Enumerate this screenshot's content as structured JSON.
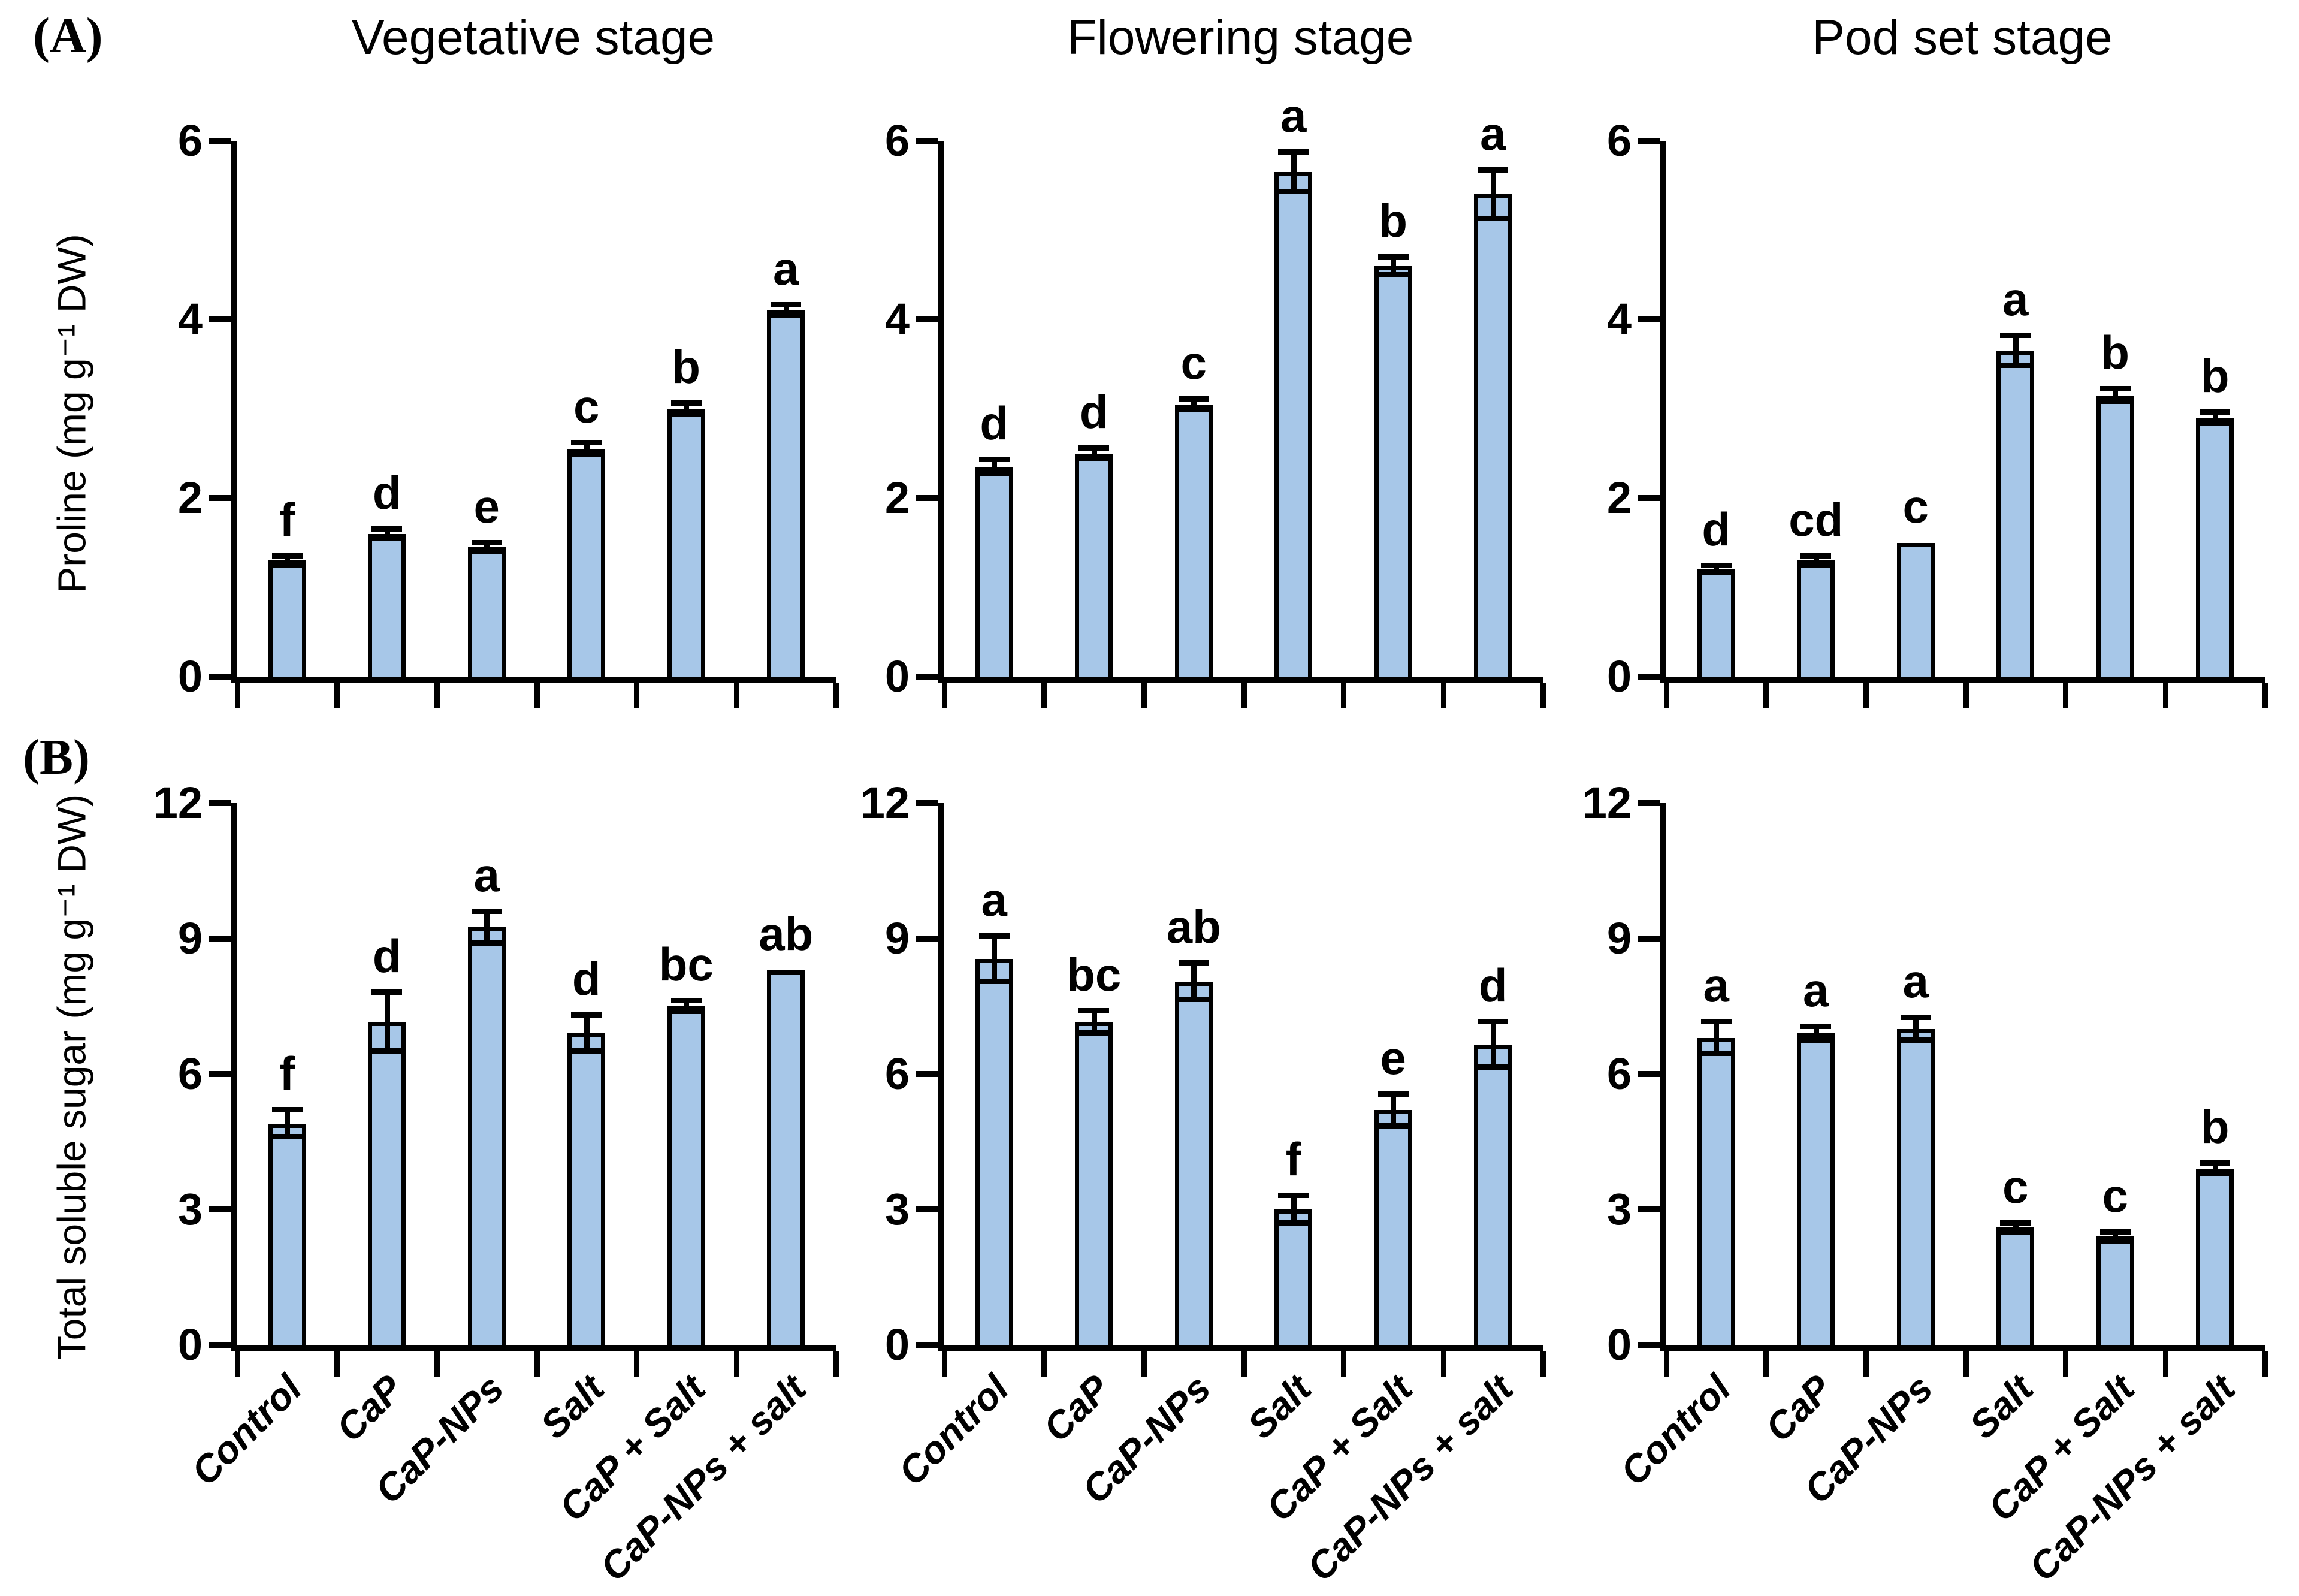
{
  "figure": {
    "panel_labels": [
      "(A)",
      "(B)"
    ],
    "bar_fill": "#A7C7E8",
    "bar_border": "#000000"
  },
  "categories": [
    "Control",
    "CaP",
    "CaP-NPs",
    "Salt",
    "CaP + Salt",
    "CaP-NPs + salt"
  ],
  "chart_data": [
    {
      "type": "bar",
      "panel": "A",
      "title": "Vegetative stage",
      "ylabel": "Proline (mg g⁻¹ DW)",
      "ylim": [
        0,
        6
      ],
      "yticks": [
        0,
        2,
        4,
        6
      ],
      "categories": [
        "Control",
        "CaP",
        "CaP-NPs",
        "Salt",
        "CaP + Salt",
        "CaP-NPs + salt"
      ],
      "values": [
        1.3,
        1.6,
        1.45,
        2.55,
        3.0,
        4.1
      ],
      "errors": [
        0.05,
        0.05,
        0.05,
        0.07,
        0.06,
        0.06
      ],
      "letters": [
        "f",
        "d",
        "e",
        "c",
        "b",
        "a"
      ]
    },
    {
      "type": "bar",
      "panel": "A",
      "title": "Flowering stage",
      "ylim": [
        0,
        6
      ],
      "yticks": [
        0,
        2,
        4,
        6
      ],
      "categories": [
        "Control",
        "CaP",
        "CaP-NPs",
        "Salt",
        "CaP + Salt",
        "CaP-NPs + salt"
      ],
      "values": [
        2.35,
        2.5,
        3.05,
        5.65,
        4.6,
        5.4
      ],
      "errors": [
        0.08,
        0.06,
        0.06,
        0.22,
        0.1,
        0.27
      ],
      "letters": [
        "d",
        "d",
        "c",
        "a",
        "b",
        "a"
      ]
    },
    {
      "type": "bar",
      "panel": "A",
      "title": "Pod set stage",
      "ylim": [
        0,
        6
      ],
      "yticks": [
        0,
        2,
        4,
        6
      ],
      "categories": [
        "Control",
        "CaP",
        "CaP-NPs",
        "Salt",
        "CaP + Salt",
        "CaP-NPs + salt"
      ],
      "values": [
        1.2,
        1.3,
        1.5,
        3.65,
        3.15,
        2.9
      ],
      "errors": [
        0.04,
        0.05,
        0,
        0.17,
        0.07,
        0.06
      ],
      "letters": [
        "d",
        "cd",
        "c",
        "a",
        "b",
        "b"
      ]
    },
    {
      "type": "bar",
      "panel": "B",
      "ylabel": "Total soluble sugar (mg g⁻¹ DW)",
      "ylim": [
        0,
        12
      ],
      "yticks": [
        0,
        3,
        6,
        9,
        12
      ],
      "categories": [
        "Control",
        "CaP",
        "CaP-NPs",
        "Salt",
        "CaP + Salt",
        "CaP-NPs + salt"
      ],
      "values": [
        4.9,
        7.15,
        9.25,
        6.9,
        7.5,
        8.3
      ],
      "errors": [
        0.3,
        0.65,
        0.35,
        0.4,
        0.12,
        0
      ],
      "letters": [
        "f",
        "d",
        "a",
        "d",
        "bc",
        "ab"
      ]
    },
    {
      "type": "bar",
      "panel": "B",
      "ylim": [
        0,
        12
      ],
      "yticks": [
        0,
        3,
        6,
        9,
        12
      ],
      "categories": [
        "Control",
        "CaP",
        "CaP-NPs",
        "Salt",
        "CaP + Salt",
        "CaP-NPs + salt"
      ],
      "values": [
        8.55,
        7.15,
        8.05,
        3.0,
        5.2,
        6.65
      ],
      "errors": [
        0.5,
        0.25,
        0.4,
        0.3,
        0.35,
        0.5
      ],
      "letters": [
        "a",
        "bc",
        "ab",
        "f",
        "e",
        "d"
      ]
    },
    {
      "type": "bar",
      "panel": "B",
      "ylim": [
        0,
        12
      ],
      "yticks": [
        0,
        3,
        6,
        9,
        12
      ],
      "categories": [
        "Control",
        "CaP",
        "CaP-NPs",
        "Salt",
        "CaP + Salt",
        "CaP-NPs + salt"
      ],
      "values": [
        6.8,
        6.9,
        7.0,
        2.6,
        2.4,
        3.9
      ],
      "errors": [
        0.35,
        0.15,
        0.25,
        0.1,
        0.1,
        0.12
      ],
      "letters": [
        "a",
        "a",
        "a",
        "c",
        "c",
        "b"
      ]
    }
  ]
}
